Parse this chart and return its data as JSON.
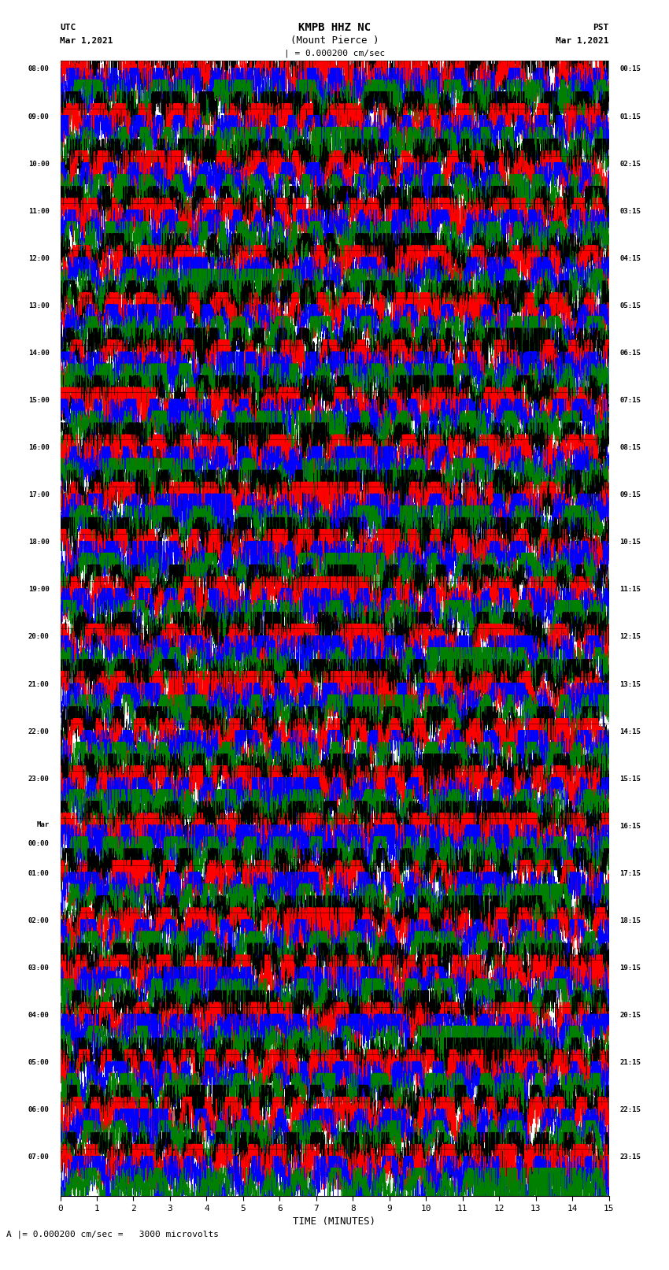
{
  "title_line1": "KMPB HHZ NC",
  "title_line2": "(Mount Pierce )",
  "title_scale": "| = 0.000200 cm/sec",
  "left_header_line1": "UTC",
  "left_header_line2": "Mar 1,2021",
  "right_header_line1": "PST",
  "right_header_line2": "Mar 1,2021",
  "bottom_label": "TIME (MINUTES)",
  "bottom_note": "A |= 0.000200 cm/sec =   3000 microvolts",
  "x_ticks": [
    0,
    1,
    2,
    3,
    4,
    5,
    6,
    7,
    8,
    9,
    10,
    11,
    12,
    13,
    14,
    15
  ],
  "utc_times": [
    "08:00",
    "09:00",
    "10:00",
    "11:00",
    "12:00",
    "13:00",
    "14:00",
    "15:00",
    "16:00",
    "17:00",
    "18:00",
    "19:00",
    "20:00",
    "21:00",
    "22:00",
    "23:00",
    "Mar\n00:00",
    "01:00",
    "02:00",
    "03:00",
    "04:00",
    "05:00",
    "06:00",
    "07:00"
  ],
  "pst_times": [
    "00:15",
    "01:15",
    "02:15",
    "03:15",
    "04:15",
    "05:15",
    "06:15",
    "07:15",
    "08:15",
    "09:15",
    "10:15",
    "11:15",
    "12:15",
    "13:15",
    "14:15",
    "15:15",
    "16:15",
    "17:15",
    "18:15",
    "19:15",
    "20:15",
    "21:15",
    "22:15",
    "23:15"
  ],
  "n_rows": 24,
  "traces_per_row": 4,
  "colors": [
    "black",
    "red",
    "blue",
    "green"
  ],
  "bg_color": "white",
  "fig_width": 8.5,
  "fig_height": 16.13,
  "dpi": 100,
  "seed": 42,
  "n_points": 4000
}
